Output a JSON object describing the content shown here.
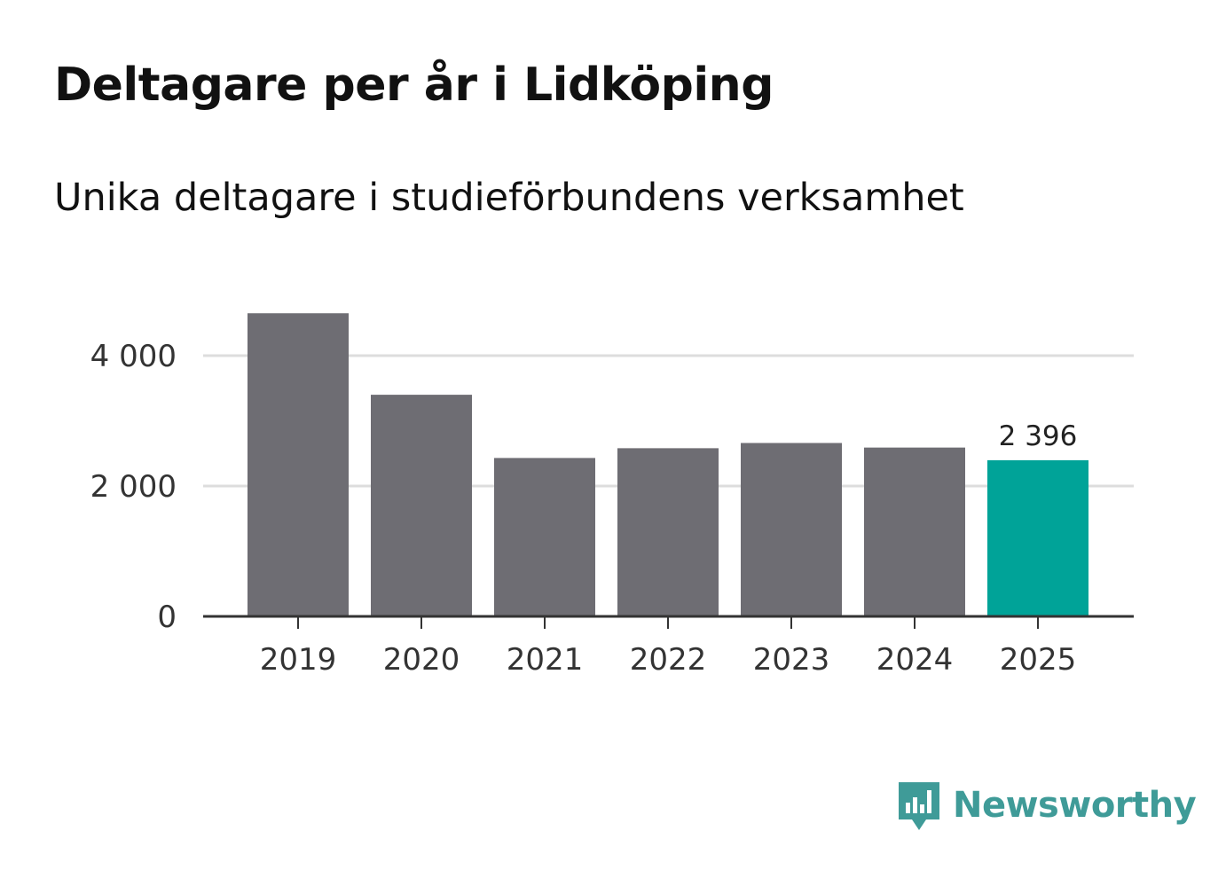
{
  "header": {
    "title": "Deltagare per år i Lidköping",
    "subtitle": "Unika deltagare i studieförbundens verksamhet"
  },
  "brand": {
    "name": "Newsworthy",
    "color": "#3f9b98"
  },
  "colors": {
    "bar": "#6e6d73",
    "highlight": "#00a398",
    "grid": "#dddddd",
    "axis": "#333333"
  },
  "chart_data": {
    "type": "bar",
    "title": "Deltagare per år i Lidköping",
    "subtitle": "Unika deltagare i studieförbundens verksamhet",
    "xlabel": "",
    "ylabel": "",
    "categories": [
      "2019",
      "2020",
      "2021",
      "2022",
      "2023",
      "2024",
      "2025"
    ],
    "values": [
      4650,
      3400,
      2430,
      2580,
      2660,
      2590,
      2396
    ],
    "highlight_index": 6,
    "data_labels": [
      {
        "index": 6,
        "text": "2 396"
      }
    ],
    "yticks": [
      0,
      2000,
      4000
    ],
    "ytick_labels": [
      "0",
      "2 000",
      "4 000"
    ],
    "ylim": [
      0,
      4650
    ],
    "grid": true
  }
}
